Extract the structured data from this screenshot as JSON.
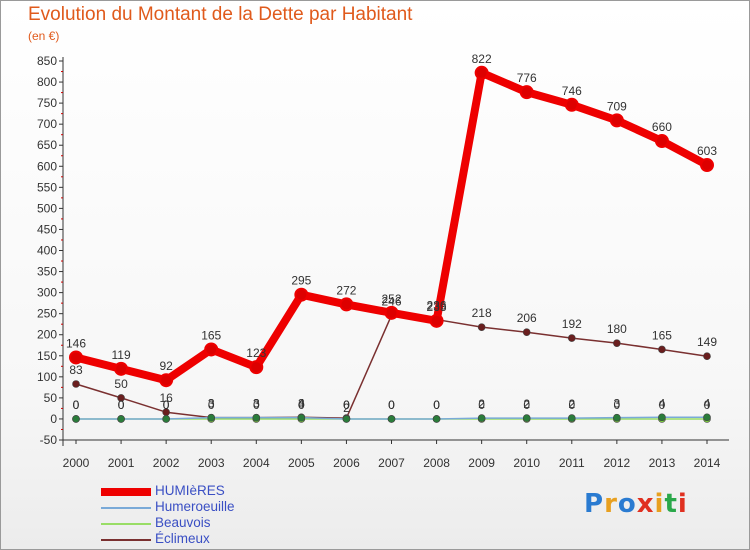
{
  "title": "Evolution du Montant de la Dette par Habitant",
  "subtitle": "(en €)",
  "logo": "Proxiti",
  "chart_data": {
    "type": "line",
    "title": "Evolution du Montant de la Dette par Habitant",
    "ylabel": "(en €)",
    "xlabel": "",
    "ylim": [
      -50,
      850
    ],
    "ytick_step": 50,
    "grid": false,
    "legend_position": "bottom-left",
    "categories": [
      "2000",
      "2001",
      "2002",
      "2003",
      "2004",
      "2005",
      "2006",
      "2007",
      "2008",
      "2009",
      "2010",
      "2011",
      "2012",
      "2013",
      "2014"
    ],
    "series": [
      {
        "name": "HUMIèRES",
        "color": "#ee0000",
        "marker": "#dd0000",
        "values": [
          146,
          119,
          92,
          165,
          123,
          295,
          272,
          252,
          233,
          822,
          776,
          746,
          709,
          660,
          603
        ],
        "labels": [
          "146",
          "119",
          "92",
          "165",
          "123",
          "295",
          "272",
          "252",
          "233",
          "822",
          "776",
          "746",
          "709",
          "660",
          "603"
        ]
      },
      {
        "name": "Humeroeuille",
        "color": "#7aaad8",
        "marker": "#2a7c3a",
        "values": [
          0,
          0,
          0,
          3,
          3,
          3,
          0,
          0,
          0,
          2,
          2,
          2,
          3,
          4,
          4
        ],
        "labels": [
          "0",
          "0",
          "0",
          "3",
          "3",
          "3",
          "0",
          "0",
          "0",
          "2",
          "2",
          "2",
          "3",
          "4",
          "4"
        ]
      },
      {
        "name": "Beauvois",
        "color": "#99dd66",
        "marker": "#7ecf3e",
        "values": [
          0,
          0,
          0,
          0,
          0,
          0,
          0,
          0,
          0,
          0,
          0,
          0,
          0,
          0,
          0
        ],
        "labels": [
          "0",
          "0",
          "0",
          "0",
          "0",
          "0",
          "0",
          "0",
          "0",
          "0",
          "0",
          "0",
          "0",
          "0",
          "0"
        ]
      },
      {
        "name": "Éclimeux",
        "color": "#7a3030",
        "marker": "#6a1e1e",
        "values": [
          83,
          50,
          16,
          3,
          3,
          4,
          2,
          246,
          236,
          218,
          206,
          192,
          180,
          165,
          149
        ],
        "labels": [
          "83",
          "50",
          "16",
          "3",
          "3",
          "4",
          "2",
          "246",
          "236",
          "218",
          "206",
          "192",
          "180",
          "165",
          "149"
        ]
      }
    ]
  }
}
